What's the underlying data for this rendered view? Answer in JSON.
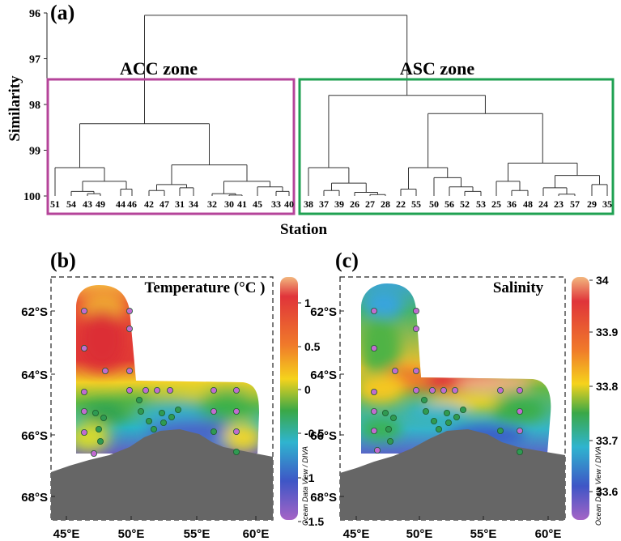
{
  "panels": {
    "a": {
      "label": "(a)",
      "chart_data": {
        "type": "dendrogram",
        "ylabel": "Similarity",
        "xlabel": "Station",
        "yticks": [
          "96",
          "97",
          "98",
          "99",
          "100"
        ],
        "ylim": [
          96,
          100
        ],
        "leaf_order": [
          "51",
          "54",
          "43",
          "49",
          "44",
          "46",
          "42",
          "47",
          "31",
          "34",
          "32",
          "30",
          "41",
          "45",
          "33",
          "40",
          "38",
          "37",
          "39",
          "26",
          "27",
          "28",
          "22",
          "55",
          "50",
          "56",
          "52",
          "53",
          "25",
          "36",
          "48",
          "24",
          "23",
          "57",
          "29",
          "35"
        ],
        "root_merge_similarity": 96.05,
        "zones": [
          {
            "name": "ACC zone",
            "color": "#b5449a",
            "stations": [
              "51",
              "54",
              "43",
              "49",
              "44",
              "46",
              "42",
              "47",
              "31",
              "34",
              "32",
              "30",
              "41",
              "45",
              "33",
              "40"
            ]
          },
          {
            "name": "ASC zone",
            "color": "#1fa152",
            "stations": [
              "38",
              "37",
              "39",
              "26",
              "27",
              "28",
              "22",
              "55",
              "50",
              "56",
              "52",
              "53",
              "25",
              "36",
              "48",
              "24",
              "23",
              "57",
              "29",
              "35"
            ]
          }
        ]
      }
    },
    "b": {
      "label": "(b)",
      "title": "Temperature (°C )",
      "chart_data": {
        "type": "heatmap",
        "variable": "Temperature",
        "unit": "°C",
        "colorbar": {
          "min": -1.5,
          "max": 1.2,
          "ticks": [
            "1",
            "0.5",
            "0",
            "-0.5",
            "-1",
            "-1.5"
          ]
        },
        "x_ticks": [
          "45°E",
          "50°E",
          "55°E",
          "60°E"
        ],
        "y_ticks": [
          "62°S",
          "64°S",
          "66°S",
          "68°S"
        ],
        "colorbar_label": "Ocean Data View / DIVA"
      }
    },
    "c": {
      "label": "(c)",
      "title": "Salinity",
      "chart_data": {
        "type": "heatmap",
        "variable": "Salinity",
        "colorbar": {
          "min": 33.55,
          "max": 34.0,
          "ticks": [
            "34",
            "33.9",
            "33.8",
            "33.7",
            "33.6"
          ]
        },
        "x_ticks": [
          "45°E",
          "50°E",
          "55°E",
          "60°E"
        ],
        "y_ticks": [
          "62°S",
          "64°S",
          "66°S",
          "68°S"
        ],
        "colorbar_label": "Ocean Data View / DIVA"
      }
    }
  }
}
